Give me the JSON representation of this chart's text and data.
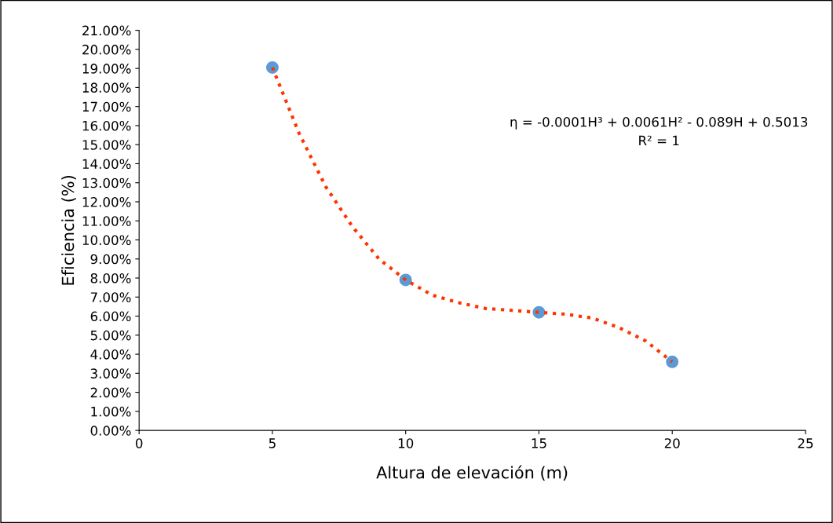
{
  "chart_data": {
    "type": "scatter",
    "xlabel": "Altura de elevación (m)",
    "ylabel": "Eficiencia (%)",
    "annotations": [
      "η = -0.0001H³ + 0.0061H² - 0.089H + 0.5013",
      "R² = 1"
    ],
    "series": [
      {
        "color": "#5b9bd5",
        "marker": "circle",
        "x": [
          5,
          10,
          15,
          20
        ],
        "values": [
          19.05,
          7.9,
          6.2,
          3.6
        ]
      },
      {
        "type": "line",
        "color": "#ff3300",
        "line_style": "dotted",
        "marker": "none",
        "x": [
          5,
          6,
          7,
          8,
          9,
          10,
          11,
          12,
          13,
          14,
          15,
          16,
          17,
          18,
          19,
          20
        ],
        "values": [
          19.05,
          15.6,
          12.8,
          10.7,
          9.0,
          7.9,
          7.1,
          6.7,
          6.4,
          6.3,
          6.2,
          6.1,
          5.9,
          5.4,
          4.7,
          3.6
        ]
      }
    ],
    "xlim": [
      0,
      25
    ],
    "xticks": [
      0,
      5,
      10,
      15,
      20,
      25
    ],
    "ylim": [
      0,
      21
    ],
    "yticks": [
      {
        "value": 0,
        "label": "0.00%"
      },
      {
        "value": 1,
        "label": "1.00%"
      },
      {
        "value": 2,
        "label": "2.00%"
      },
      {
        "value": 3,
        "label": "3.00%"
      },
      {
        "value": 4,
        "label": "4.00%"
      },
      {
        "value": 5,
        "label": "5.00%"
      },
      {
        "value": 6,
        "label": "6.00%"
      },
      {
        "value": 7,
        "label": "7.00%"
      },
      {
        "value": 8,
        "label": "8.00%"
      },
      {
        "value": 9,
        "label": "9.00%"
      },
      {
        "value": 10,
        "label": "10.00%"
      },
      {
        "value": 11,
        "label": "11.00%"
      },
      {
        "value": 12,
        "label": "12.00%"
      },
      {
        "value": 13,
        "label": "13.00%"
      },
      {
        "value": 14,
        "label": "14.00%"
      },
      {
        "value": 15,
        "label": "15.00%"
      },
      {
        "value": 16,
        "label": "16.00%"
      },
      {
        "value": 17,
        "label": "17.00%"
      },
      {
        "value": 18,
        "label": "18.00%"
      },
      {
        "value": 19,
        "label": "19.00%"
      },
      {
        "value": 20,
        "label": "20.00%"
      },
      {
        "value": 21,
        "label": "21.00%"
      }
    ],
    "grid": false,
    "legend": false
  }
}
